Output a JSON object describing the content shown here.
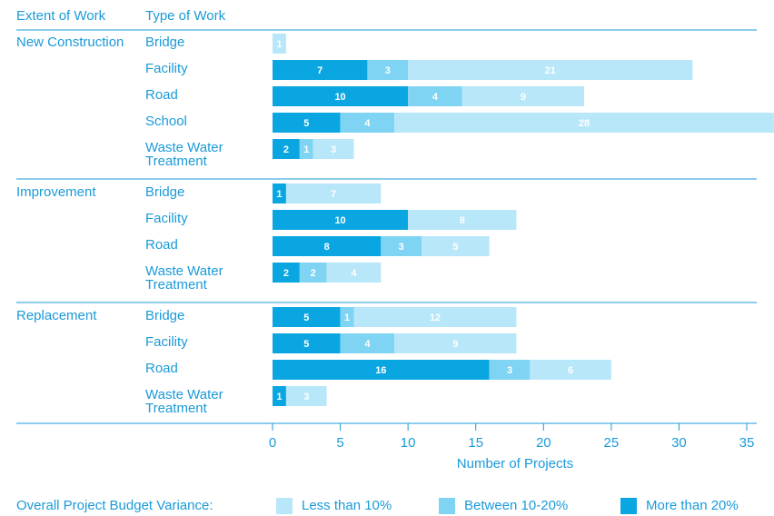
{
  "chart_data": {
    "type": "bar",
    "orientation": "horizontal",
    "stacked": true,
    "column_headers": [
      "Extent of Work",
      "Type of Work"
    ],
    "groups": [
      {
        "name": "New Construction",
        "categories": [
          "Bridge",
          "Facility",
          "Road",
          "School",
          "Waste Water Treatment"
        ]
      },
      {
        "name": "Improvement",
        "categories": [
          "Bridge",
          "Facility",
          "Road",
          "Waste Water Treatment"
        ]
      },
      {
        "name": "Replacement",
        "categories": [
          "Bridge",
          "Facility",
          "Road",
          "Waste Water Treatment"
        ]
      }
    ],
    "series": [
      {
        "name": "More than 20%",
        "color": "#0aa6e2",
        "values": [
          null,
          7,
          10,
          5,
          2,
          1,
          10,
          8,
          2,
          5,
          5,
          16,
          1
        ]
      },
      {
        "name": "Between 10-20%",
        "color": "#7fd4f3",
        "values": [
          null,
          3,
          4,
          4,
          1,
          null,
          null,
          3,
          2,
          1,
          4,
          3,
          null
        ]
      },
      {
        "name": "Less than 10%",
        "color": "#b7e7f9",
        "values": [
          1,
          21,
          9,
          28,
          3,
          7,
          8,
          5,
          4,
          12,
          9,
          6,
          3
        ]
      }
    ],
    "xlabel": "Number of Projects",
    "xlim": [
      0,
      35
    ],
    "xticks": [
      0,
      5,
      10,
      15,
      20,
      25,
      30,
      35
    ],
    "legend_title": "Overall Project Budget Variance:",
    "legend": "bottom"
  }
}
